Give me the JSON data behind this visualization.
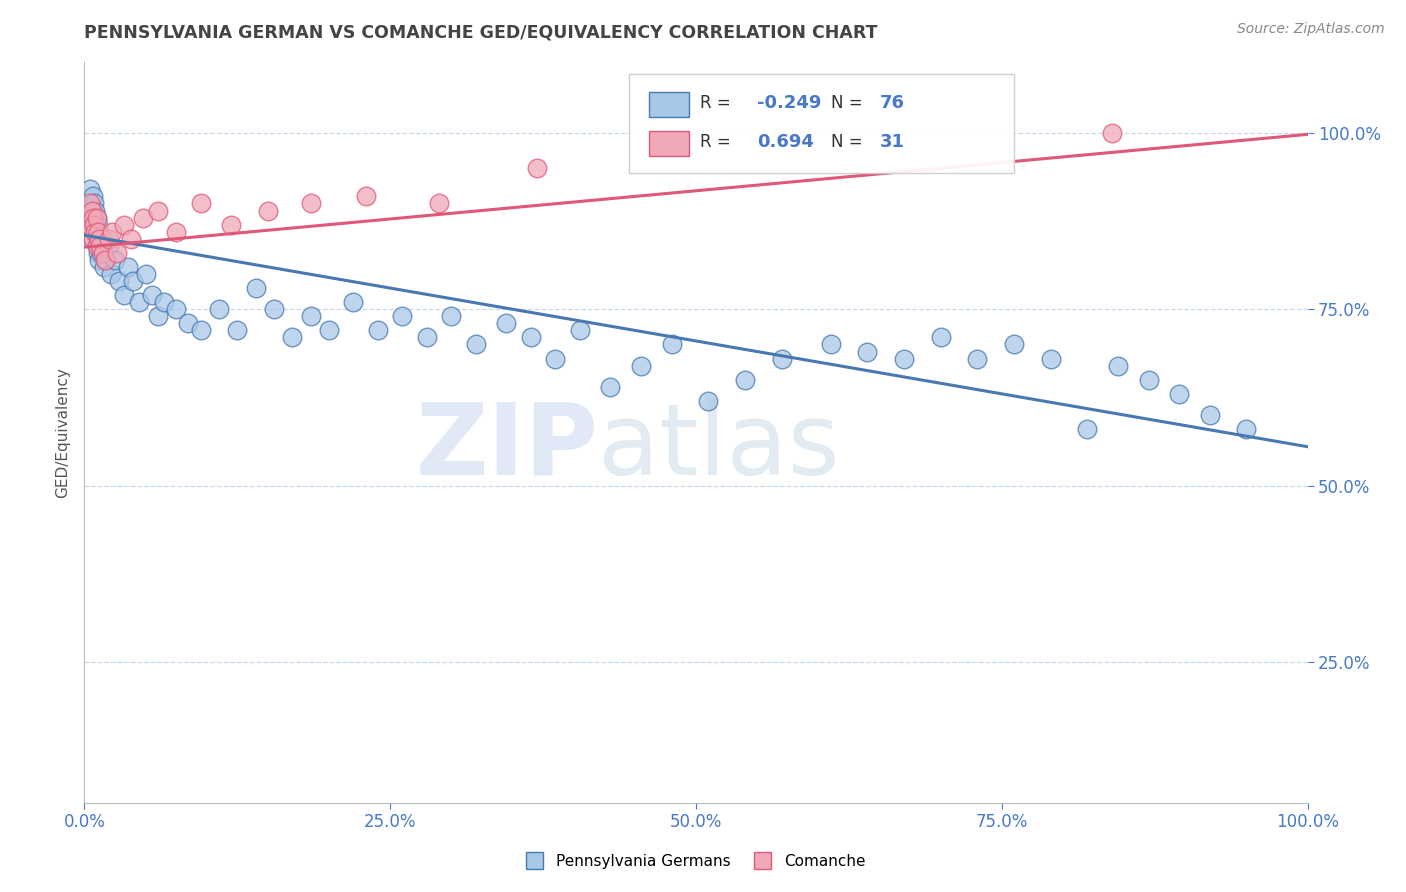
{
  "title": "PENNSYLVANIA GERMAN VS COMANCHE GED/EQUIVALENCY CORRELATION CHART",
  "source_text": "Source: ZipAtlas.com",
  "ylabel": "GED/Equivalency",
  "xlim": [
    0.0,
    1.0
  ],
  "ylim": [
    0.05,
    1.1
  ],
  "xticks": [
    0.0,
    0.25,
    0.5,
    0.75,
    1.0
  ],
  "xticklabels": [
    "0.0%",
    "25.0%",
    "50.0%",
    "75.0%",
    "100.0%"
  ],
  "ytick_positions": [
    0.25,
    0.5,
    0.75,
    1.0
  ],
  "yticklabels": [
    "25.0%",
    "50.0%",
    "75.0%",
    "100.0%"
  ],
  "blue_R": -0.249,
  "blue_N": 76,
  "pink_R": 0.694,
  "pink_N": 31,
  "blue_color": "#a8c8e8",
  "pink_color": "#f0a8b8",
  "blue_line_color": "#4878b0",
  "pink_line_color": "#e05878",
  "legend_label_blue": "Pennsylvania Germans",
  "legend_label_pink": "Comanche",
  "watermark_zip": "ZIP",
  "watermark_atlas": "atlas",
  "blue_x": [
    0.003,
    0.004,
    0.005,
    0.005,
    0.006,
    0.006,
    0.007,
    0.007,
    0.008,
    0.008,
    0.008,
    0.009,
    0.009,
    0.01,
    0.01,
    0.01,
    0.011,
    0.011,
    0.012,
    0.012,
    0.013,
    0.014,
    0.015,
    0.016,
    0.018,
    0.02,
    0.022,
    0.025,
    0.028,
    0.032,
    0.036,
    0.04,
    0.045,
    0.05,
    0.055,
    0.06,
    0.065,
    0.075,
    0.085,
    0.095,
    0.11,
    0.125,
    0.14,
    0.155,
    0.17,
    0.185,
    0.2,
    0.22,
    0.24,
    0.26,
    0.28,
    0.3,
    0.32,
    0.345,
    0.365,
    0.385,
    0.405,
    0.43,
    0.455,
    0.48,
    0.51,
    0.54,
    0.57,
    0.61,
    0.64,
    0.67,
    0.7,
    0.73,
    0.76,
    0.79,
    0.82,
    0.845,
    0.87,
    0.895,
    0.92,
    0.95
  ],
  "blue_y": [
    0.9,
    0.88,
    0.92,
    0.87,
    0.89,
    0.86,
    0.91,
    0.85,
    0.9,
    0.88,
    0.87,
    0.86,
    0.89,
    0.88,
    0.84,
    0.86,
    0.87,
    0.83,
    0.85,
    0.82,
    0.84,
    0.83,
    0.85,
    0.81,
    0.82,
    0.84,
    0.8,
    0.82,
    0.79,
    0.77,
    0.81,
    0.79,
    0.76,
    0.8,
    0.77,
    0.74,
    0.76,
    0.75,
    0.73,
    0.72,
    0.75,
    0.72,
    0.78,
    0.75,
    0.71,
    0.74,
    0.72,
    0.76,
    0.72,
    0.74,
    0.71,
    0.74,
    0.7,
    0.73,
    0.71,
    0.68,
    0.72,
    0.64,
    0.67,
    0.7,
    0.62,
    0.65,
    0.68,
    0.7,
    0.69,
    0.68,
    0.71,
    0.68,
    0.7,
    0.68,
    0.58,
    0.67,
    0.65,
    0.63,
    0.6,
    0.58
  ],
  "pink_x": [
    0.003,
    0.004,
    0.005,
    0.006,
    0.007,
    0.007,
    0.008,
    0.009,
    0.01,
    0.01,
    0.011,
    0.012,
    0.013,
    0.015,
    0.017,
    0.02,
    0.023,
    0.027,
    0.032,
    0.038,
    0.048,
    0.06,
    0.075,
    0.095,
    0.12,
    0.15,
    0.185,
    0.23,
    0.29,
    0.37,
    0.84
  ],
  "pink_y": [
    0.88,
    0.87,
    0.9,
    0.89,
    0.88,
    0.85,
    0.87,
    0.86,
    0.88,
    0.84,
    0.86,
    0.85,
    0.84,
    0.83,
    0.82,
    0.85,
    0.86,
    0.83,
    0.87,
    0.85,
    0.88,
    0.89,
    0.86,
    0.9,
    0.87,
    0.89,
    0.9,
    0.91,
    0.9,
    0.95,
    1.0
  ],
  "blue_line_start_y": 0.855,
  "blue_line_end_y": 0.555,
  "pink_line_start_y": 0.838,
  "pink_line_end_y": 0.998
}
